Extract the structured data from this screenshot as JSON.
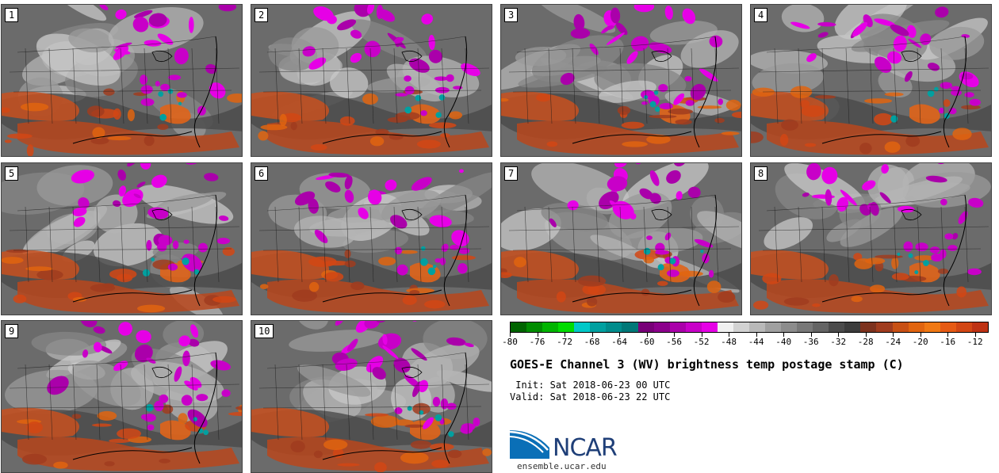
{
  "panels": [
    {
      "label": "1"
    },
    {
      "label": "2"
    },
    {
      "label": "3"
    },
    {
      "label": "4"
    },
    {
      "label": "5"
    },
    {
      "label": "6"
    },
    {
      "label": "7"
    },
    {
      "label": "8"
    },
    {
      "label": "9"
    },
    {
      "label": "10"
    }
  ],
  "colorbar": {
    "colors": [
      "#006400",
      "#008c00",
      "#00b400",
      "#00dc00",
      "#00c8c8",
      "#00a0a0",
      "#008c8c",
      "#007878",
      "#780078",
      "#8c008c",
      "#aa00aa",
      "#c800c8",
      "#e600e6",
      "#f0f0f0",
      "#d2d2d2",
      "#b9b9b9",
      "#a0a0a0",
      "#8c8c8c",
      "#787878",
      "#646464",
      "#4b4b4b",
      "#3c3c3c",
      "#7d321e",
      "#a03c1e",
      "#c85014",
      "#e1640f",
      "#f07814",
      "#e65a14",
      "#d24614",
      "#be3214"
    ],
    "tick_labels": [
      "-80",
      "-76",
      "-72",
      "-68",
      "-64",
      "-60",
      "-56",
      "-52",
      "-48",
      "-44",
      "-40",
      "-36",
      "-32",
      "-28",
      "-24",
      "-20",
      "-16",
      "-12"
    ],
    "range": [
      -80,
      -10
    ]
  },
  "title": "GOES-E Channel 3 (WV) brightness temp postage stamp (C)",
  "init_label": " Init:",
  "init_value": "Sat 2018-06-23 00 UTC",
  "valid_label": "Valid:",
  "valid_value": "Sat 2018-06-23 22 UTC",
  "logo_text": "NCAR",
  "url": "ensemble.ucar.edu"
}
